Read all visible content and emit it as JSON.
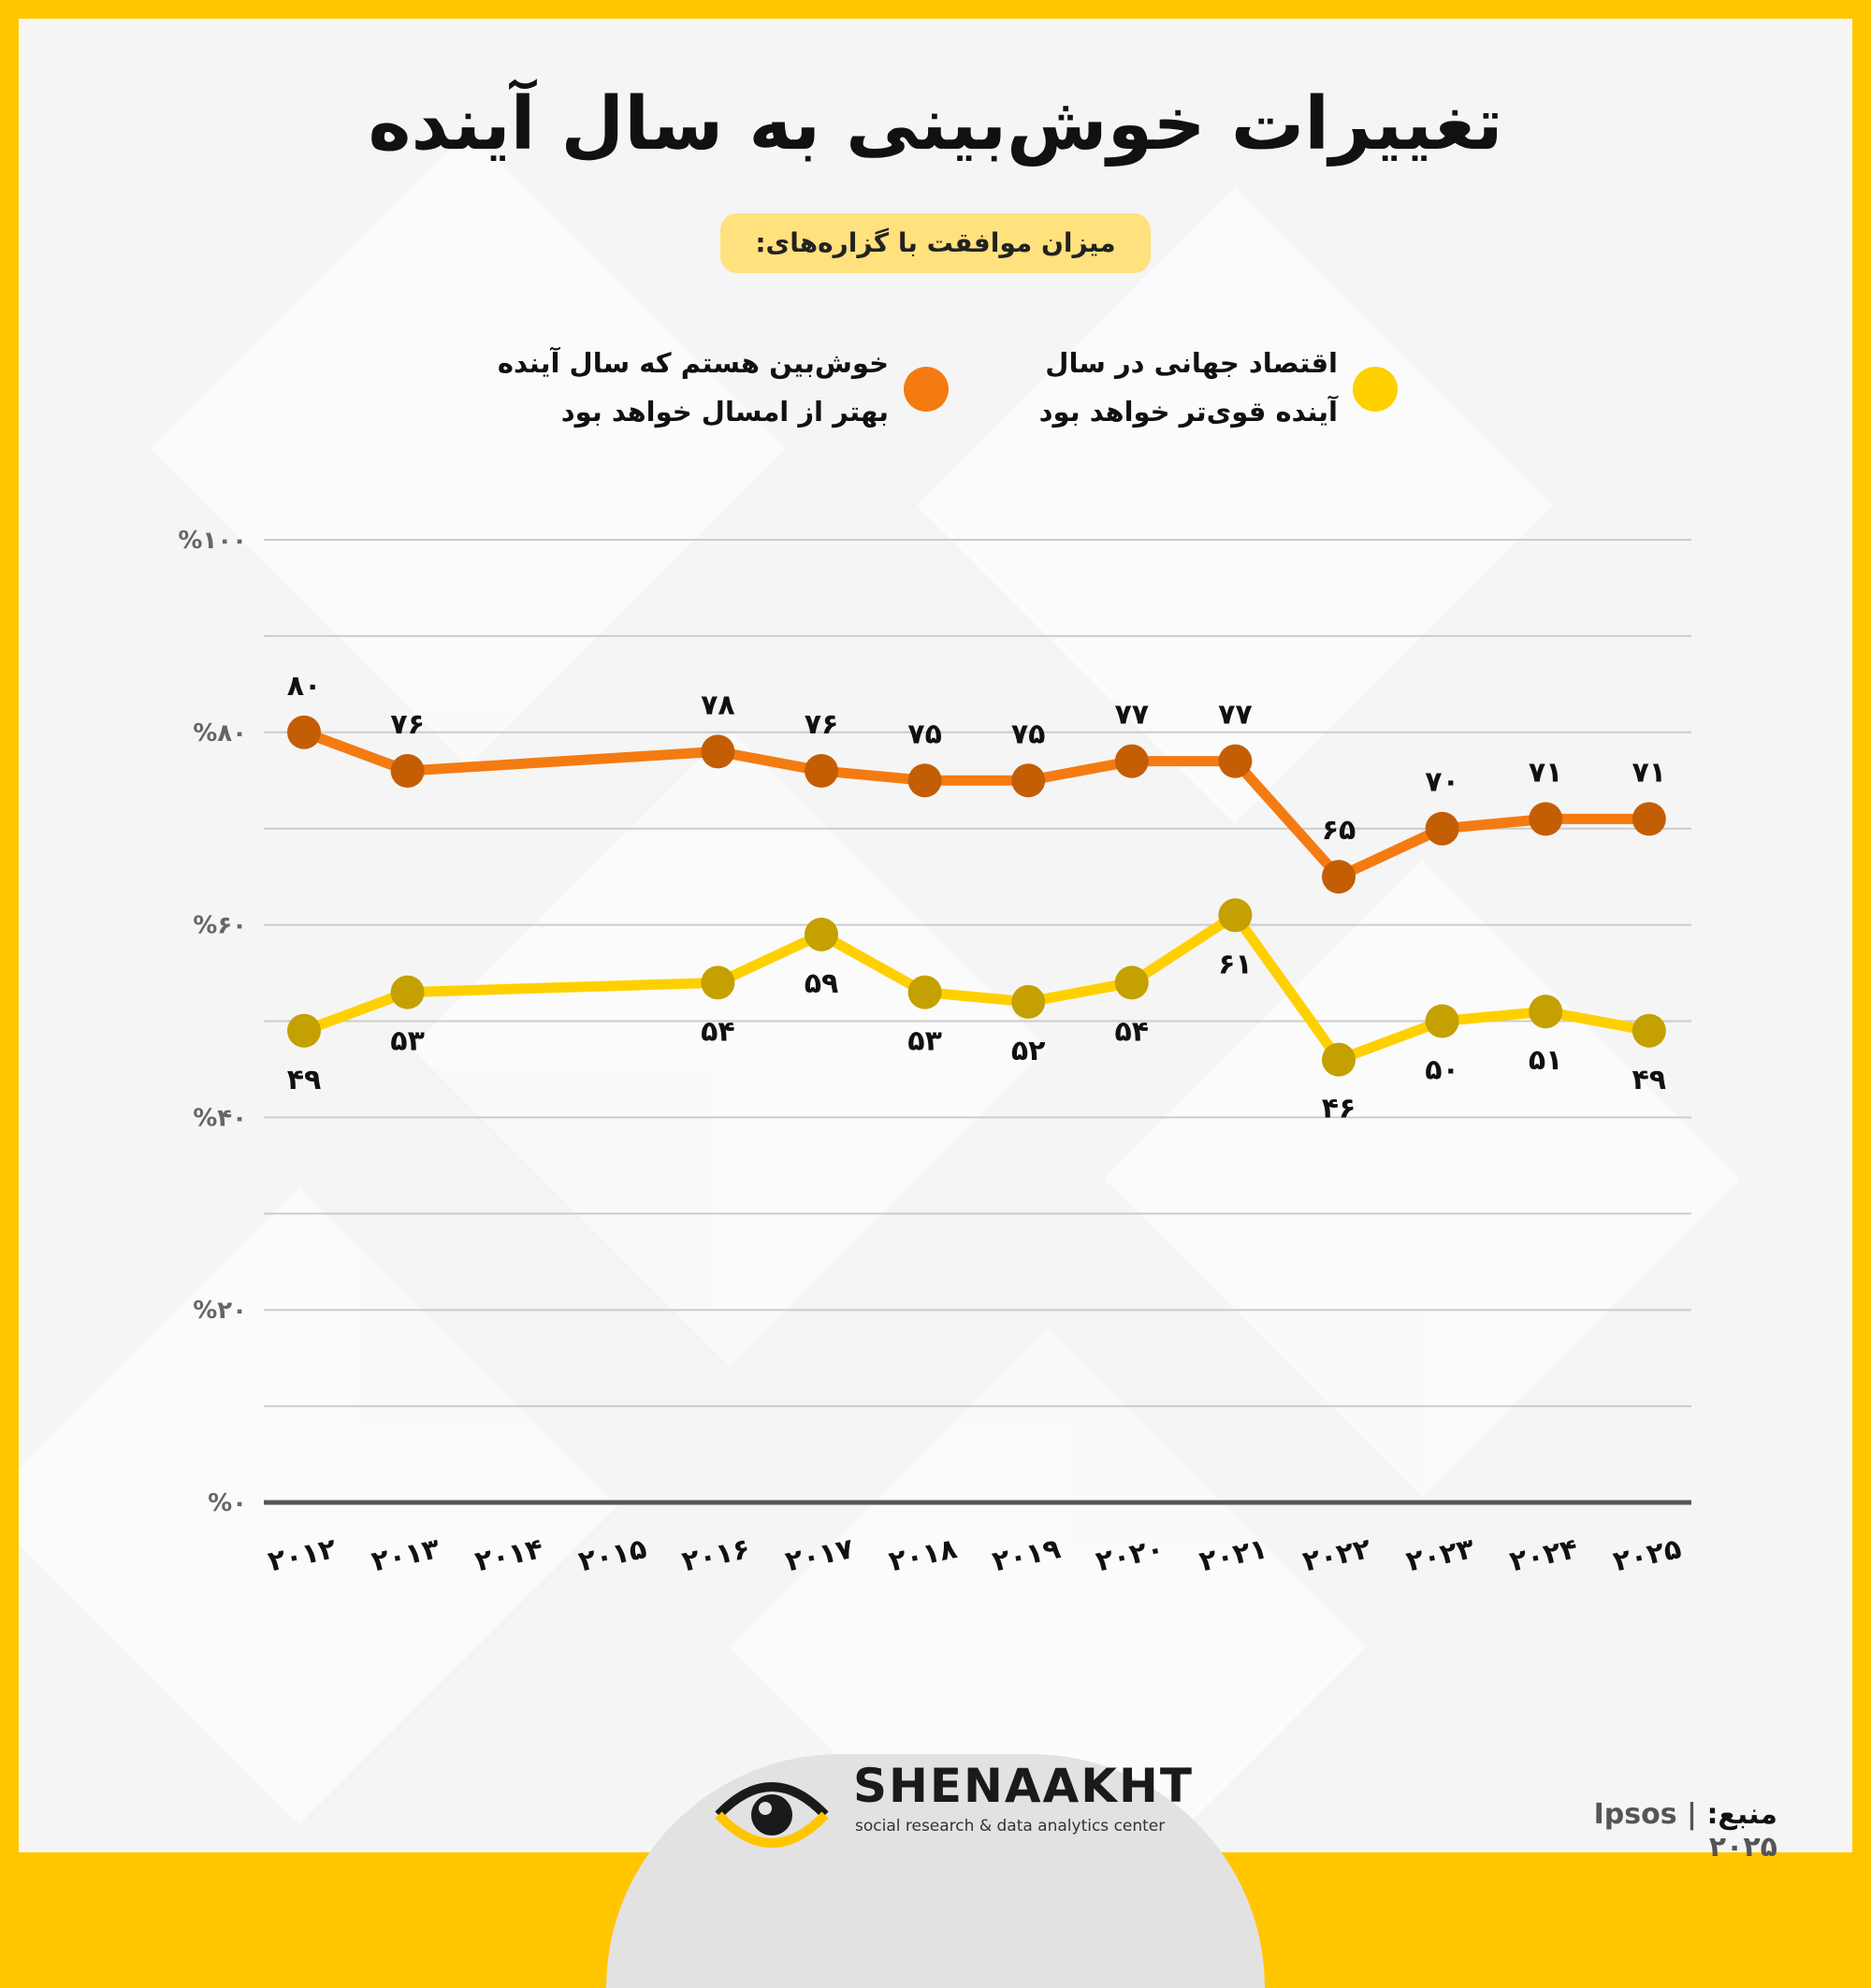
{
  "title": "تغییرات خوش‌بینی به سال آینده",
  "subtitle": "میزان موافقت با گزاره‌های:",
  "legend": [
    {
      "label_line1": "اقتصاد جهانی در سال",
      "label_line2": "آینده قوی‌تر خواهد بود",
      "color": "#FFD000"
    },
    {
      "label_line1": "خوش‌بین هستم که سال آینده",
      "label_line2": "بهتر از امسال خواهد بود",
      "color": "#F47B12"
    }
  ],
  "source": {
    "prefix": "منبع:",
    "value": "Ipsos | ۲۰۲۵"
  },
  "brand": {
    "name": "SHENAAKHT",
    "tagline": "social research & data analytics center"
  },
  "colors": {
    "frame": "#FFC600",
    "orange_line": "#F47B12",
    "orange_marker": "#C45E05",
    "yellow_line": "#FFD000",
    "yellow_marker": "#C4A000",
    "grid": "#CCCCCC",
    "baseline": "#555555"
  },
  "chart_data": {
    "type": "line",
    "x": [
      2012,
      2013,
      2014,
      2015,
      2016,
      2017,
      2018,
      2019,
      2020,
      2021,
      2022,
      2023,
      2024,
      2025
    ],
    "x_tick_labels": [
      "۲۰۱۲",
      "۲۰۱۳",
      "۲۰۱۴",
      "۲۰۱۵",
      "۲۰۱۶",
      "۲۰۱۷",
      "۲۰۱۸",
      "۲۰۱۹",
      "۲۰۲۰",
      "۲۰۲۱",
      "۲۰۲۲",
      "۲۰۲۳",
      "۲۰۲۴",
      "۲۰۲۵"
    ],
    "y_ticks": [
      0,
      20,
      40,
      60,
      80,
      100
    ],
    "y_tick_labels": [
      "%۰",
      "%۲۰",
      "%۴۰",
      "%۶۰",
      "%۸۰",
      "%۱۰۰"
    ],
    "ylim": [
      0,
      100
    ],
    "grid": true,
    "grid_step": 10,
    "series": [
      {
        "name": "خوش‌بین هستم که سال آینده بهتر از امسال خواهد بود",
        "color": "#F47B12",
        "label_position": "above",
        "points": [
          {
            "x": 2012,
            "y": 80,
            "label": "۸۰"
          },
          {
            "x": 2013,
            "y": 76,
            "label": "۷۶"
          },
          {
            "x": 2016,
            "y": 78,
            "label": "۷۸"
          },
          {
            "x": 2017,
            "y": 76,
            "label": "۷۶"
          },
          {
            "x": 2018,
            "y": 75,
            "label": "۷۵"
          },
          {
            "x": 2019,
            "y": 75,
            "label": "۷۵"
          },
          {
            "x": 2020,
            "y": 77,
            "label": "۷۷"
          },
          {
            "x": 2021,
            "y": 77,
            "label": "۷۷"
          },
          {
            "x": 2022,
            "y": 65,
            "label": "۶۵"
          },
          {
            "x": 2023,
            "y": 70,
            "label": "۷۰"
          },
          {
            "x": 2024,
            "y": 71,
            "label": "۷۱"
          },
          {
            "x": 2025,
            "y": 71,
            "label": "۷۱"
          }
        ]
      },
      {
        "name": "اقتصاد جهانی در سال آینده قوی‌تر خواهد بود",
        "color": "#FFD000",
        "label_position": "below",
        "points": [
          {
            "x": 2012,
            "y": 49,
            "label": "۴۹"
          },
          {
            "x": 2013,
            "y": 53,
            "label": "۵۳"
          },
          {
            "x": 2016,
            "y": 54,
            "label": "۵۴"
          },
          {
            "x": 2017,
            "y": 59,
            "label": "۵۹"
          },
          {
            "x": 2018,
            "y": 53,
            "label": "۵۳"
          },
          {
            "x": 2019,
            "y": 52,
            "label": "۵۲"
          },
          {
            "x": 2020,
            "y": 54,
            "label": "۵۴"
          },
          {
            "x": 2021,
            "y": 61,
            "label": "۶۱"
          },
          {
            "x": 2022,
            "y": 46,
            "label": "۴۶"
          },
          {
            "x": 2023,
            "y": 50,
            "label": "۵۰"
          },
          {
            "x": 2024,
            "y": 51,
            "label": "۵۱"
          },
          {
            "x": 2025,
            "y": 49,
            "label": "۴۹"
          }
        ]
      }
    ]
  }
}
